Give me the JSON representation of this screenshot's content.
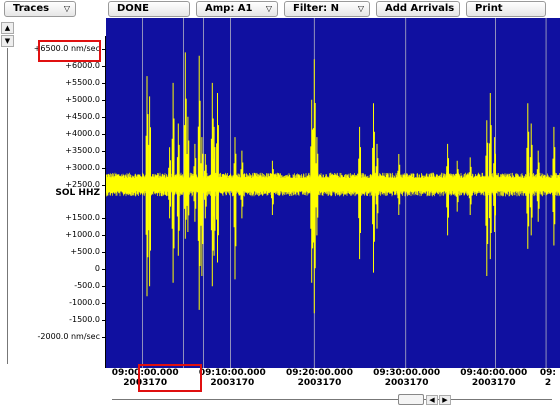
{
  "toolbar": {
    "traces_label": "Traces",
    "done_label": "DONE",
    "amp_label": "Amp: A1",
    "filter_label": "Filter: N",
    "add_arrivals_label": "Add Arrivals",
    "print_label": "Print"
  },
  "channel_label": "SOL HHZ",
  "y_axis": {
    "unit": "nm/sec",
    "ticks": [
      {
        "label": "+6500.0 nm/sec",
        "value": 6500
      },
      {
        "label": "+6000.0",
        "value": 6000
      },
      {
        "label": "+5500.0",
        "value": 5500
      },
      {
        "label": "+5000.0",
        "value": 5000
      },
      {
        "label": "+4500.0",
        "value": 4500
      },
      {
        "label": "+4000.0",
        "value": 4000
      },
      {
        "label": "+3500.0",
        "value": 3500
      },
      {
        "label": "+3000.0",
        "value": 3000
      },
      {
        "label": "+2500.0",
        "value": 2500
      },
      {
        "label": "+1500.0",
        "value": 1500
      },
      {
        "label": "+1000.0",
        "value": 1000
      },
      {
        "label": "+500.0",
        "value": 500
      },
      {
        "label": "0",
        "value": 0
      },
      {
        "label": "-500.0",
        "value": -500
      },
      {
        "label": "-1000.0",
        "value": -1000
      },
      {
        "label": "-1500.0",
        "value": -1500
      },
      {
        "label": "-2000.0 nm/sec",
        "value": -2000
      }
    ]
  },
  "x_axis": {
    "ticks": [
      {
        "time": "09:00:00.000",
        "date": "2003170",
        "minute": 0
      },
      {
        "time": "09:10:00.000",
        "date": "2003170",
        "minute": 10
      },
      {
        "time": "09:20:00.000",
        "date": "2003170",
        "minute": 20
      },
      {
        "time": "09:30:00.000",
        "date": "2003170",
        "minute": 30
      },
      {
        "time": "09:40:00.000",
        "date": "2003170",
        "minute": 40
      },
      {
        "time": "09:",
        "date": "2",
        "minute": 50
      }
    ]
  },
  "seismogram": {
    "baseline_value": 2500,
    "noise_halfwidth": 350,
    "view_start_minute": -4.5,
    "view_end_minute": 47.6,
    "gridline_minutes": [
      -0.3,
      4.4,
      6.7,
      9.8,
      19.4,
      29.9,
      40.2,
      46.0
    ],
    "spikes": [
      {
        "minute": 0.2,
        "max": 5700,
        "min": -800
      },
      {
        "minute": 0.5,
        "max": 5100,
        "min": -500
      },
      {
        "minute": 2.8,
        "max": 3600,
        "min": 1500
      },
      {
        "minute": 3.2,
        "max": 5500,
        "min": -400
      },
      {
        "minute": 3.8,
        "max": 4300,
        "min": 400
      },
      {
        "minute": 4.6,
        "max": 6400,
        "min": 900
      },
      {
        "minute": 4.9,
        "max": 4500,
        "min": 1100
      },
      {
        "minute": 5.7,
        "max": 3700,
        "min": 1400
      },
      {
        "minute": 6.2,
        "max": 6300,
        "min": -1200
      },
      {
        "minute": 6.5,
        "max": 3900,
        "min": -200
      },
      {
        "minute": 6.9,
        "max": 3400,
        "min": 1500
      },
      {
        "minute": 7.7,
        "max": 5500,
        "min": -500
      },
      {
        "minute": 7.9,
        "max": 4200,
        "min": 400
      },
      {
        "minute": 8.3,
        "max": 5200,
        "min": 200
      },
      {
        "minute": 10.3,
        "max": 3900,
        "min": -300
      },
      {
        "minute": 11.1,
        "max": 3500,
        "min": 1500
      },
      {
        "minute": 14.6,
        "max": 3200,
        "min": 1600
      },
      {
        "minute": 19.1,
        "max": 5000,
        "min": -400
      },
      {
        "minute": 19.4,
        "max": 6200,
        "min": -1300
      },
      {
        "minute": 19.7,
        "max": 3900,
        "min": 1000
      },
      {
        "minute": 24.6,
        "max": 4200,
        "min": 300
      },
      {
        "minute": 26.2,
        "max": 4900,
        "min": -100
      },
      {
        "minute": 26.6,
        "max": 3700,
        "min": 1200
      },
      {
        "minute": 29.1,
        "max": 3400,
        "min": 1600
      },
      {
        "minute": 34.7,
        "max": 3700,
        "min": 1000
      },
      {
        "minute": 35.8,
        "max": 3200,
        "min": 1700
      },
      {
        "minute": 37.3,
        "max": 3300,
        "min": 1600
      },
      {
        "minute": 39.2,
        "max": 4400,
        "min": -200
      },
      {
        "minute": 39.6,
        "max": 5200,
        "min": 300
      },
      {
        "minute": 40.1,
        "max": 3900,
        "min": 1100
      },
      {
        "minute": 43.9,
        "max": 4900,
        "min": 600
      },
      {
        "minute": 44.3,
        "max": 4300,
        "min": 1000
      },
      {
        "minute": 45.1,
        "max": 3500,
        "min": 1400
      },
      {
        "minute": 46.9,
        "max": 4200,
        "min": 700
      }
    ]
  },
  "colors": {
    "plot_background": "#1010a0",
    "trace": "#ffff00",
    "gridline": "#c8c8c8",
    "highlight": "#e01010"
  }
}
